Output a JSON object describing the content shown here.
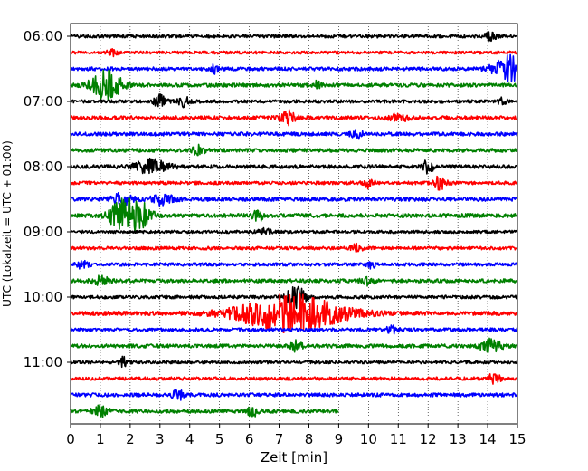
{
  "chart_data": {
    "type": "line",
    "title": "",
    "xlabel": "Zeit  [min]",
    "ylabel": "UTC (Lokalzeit = UTC + 01:00)",
    "xlim": [
      0,
      15
    ],
    "x_ticks": [
      "0",
      "1",
      "2",
      "3",
      "4",
      "5",
      "6",
      "7",
      "8",
      "9",
      "10",
      "11",
      "12",
      "13",
      "14",
      "15"
    ],
    "y_ticks": [
      "06:00",
      "07:00",
      "08:00",
      "09:00",
      "10:00",
      "11:00"
    ],
    "grid": "vertical dotted lines at each minute",
    "line_minutes": 15,
    "colors": [
      "#000000",
      "#ff0000",
      "#0000ff",
      "#008000"
    ],
    "traces": [
      {
        "start": "06:00",
        "color": "#000000",
        "amplitude": 0.18,
        "end_minute": 15,
        "events": [
          {
            "minute": 14.1,
            "amplitude": 0.55,
            "duration": 0.25
          }
        ]
      },
      {
        "start": "06:15",
        "color": "#ff0000",
        "amplitude": 0.16,
        "end_minute": 15,
        "events": [
          {
            "minute": 1.4,
            "amplitude": 0.35,
            "duration": 0.25
          }
        ]
      },
      {
        "start": "06:30",
        "color": "#0000ff",
        "amplitude": 0.2,
        "end_minute": 15,
        "events": [
          {
            "minute": 14.7,
            "amplitude": 1.4,
            "duration": 0.7
          },
          {
            "minute": 4.8,
            "amplitude": 0.45,
            "duration": 0.2
          }
        ]
      },
      {
        "start": "06:45",
        "color": "#008000",
        "amplitude": 0.2,
        "end_minute": 15,
        "events": [
          {
            "minute": 1.2,
            "amplitude": 1.6,
            "duration": 0.7
          },
          {
            "minute": 8.3,
            "amplitude": 0.45,
            "duration": 0.2
          }
        ]
      },
      {
        "start": "07:00",
        "color": "#000000",
        "amplitude": 0.18,
        "end_minute": 15,
        "events": [
          {
            "minute": 3.0,
            "amplitude": 0.65,
            "duration": 0.3
          },
          {
            "minute": 3.8,
            "amplitude": 0.6,
            "duration": 0.3
          },
          {
            "minute": 14.5,
            "amplitude": 0.45,
            "duration": 0.2
          }
        ]
      },
      {
        "start": "07:15",
        "color": "#ff0000",
        "amplitude": 0.2,
        "end_minute": 15,
        "events": [
          {
            "minute": 7.3,
            "amplitude": 0.8,
            "duration": 0.35
          },
          {
            "minute": 11.0,
            "amplitude": 0.35,
            "duration": 0.5
          }
        ]
      },
      {
        "start": "07:30",
        "color": "#0000ff",
        "amplitude": 0.2,
        "end_minute": 15,
        "events": [
          {
            "minute": 9.6,
            "amplitude": 0.5,
            "duration": 0.25
          }
        ]
      },
      {
        "start": "07:45",
        "color": "#008000",
        "amplitude": 0.2,
        "end_minute": 15,
        "events": [
          {
            "minute": 4.3,
            "amplitude": 0.5,
            "duration": 0.3
          }
        ]
      },
      {
        "start": "08:00",
        "color": "#000000",
        "amplitude": 0.2,
        "end_minute": 15,
        "events": [
          {
            "minute": 2.7,
            "amplitude": 0.75,
            "duration": 0.8
          },
          {
            "minute": 12.0,
            "amplitude": 0.7,
            "duration": 0.25
          }
        ]
      },
      {
        "start": "08:15",
        "color": "#ff0000",
        "amplitude": 0.18,
        "end_minute": 15,
        "events": [
          {
            "minute": 12.4,
            "amplitude": 0.7,
            "duration": 0.3
          },
          {
            "minute": 10.0,
            "amplitude": 0.5,
            "duration": 0.25
          }
        ]
      },
      {
        "start": "08:30",
        "color": "#0000ff",
        "amplitude": 0.22,
        "end_minute": 15,
        "events": [
          {
            "minute": 1.7,
            "amplitude": 0.55,
            "duration": 0.5
          },
          {
            "minute": 3.1,
            "amplitude": 0.55,
            "duration": 0.5
          }
        ]
      },
      {
        "start": "08:45",
        "color": "#008000",
        "amplitude": 0.22,
        "end_minute": 15,
        "events": [
          {
            "minute": 1.7,
            "amplitude": 1.6,
            "duration": 0.55
          },
          {
            "minute": 2.3,
            "amplitude": 1.6,
            "duration": 0.55
          },
          {
            "minute": 6.3,
            "amplitude": 0.5,
            "duration": 0.3
          }
        ]
      },
      {
        "start": "09:00",
        "color": "#000000",
        "amplitude": 0.16,
        "end_minute": 15,
        "events": [
          {
            "minute": 6.5,
            "amplitude": 0.4,
            "duration": 0.3
          }
        ]
      },
      {
        "start": "09:15",
        "color": "#ff0000",
        "amplitude": 0.18,
        "end_minute": 15,
        "events": [
          {
            "minute": 9.6,
            "amplitude": 0.4,
            "duration": 0.25
          }
        ]
      },
      {
        "start": "09:30",
        "color": "#0000ff",
        "amplitude": 0.18,
        "end_minute": 15,
        "events": [
          {
            "minute": 0.4,
            "amplitude": 0.45,
            "duration": 0.3
          },
          {
            "minute": 10.1,
            "amplitude": 0.45,
            "duration": 0.2
          }
        ]
      },
      {
        "start": "09:45",
        "color": "#008000",
        "amplitude": 0.2,
        "end_minute": 15,
        "events": [
          {
            "minute": 1.0,
            "amplitude": 0.45,
            "duration": 0.4
          },
          {
            "minute": 10.0,
            "amplitude": 0.45,
            "duration": 0.3
          }
        ]
      },
      {
        "start": "10:00",
        "color": "#000000",
        "amplitude": 0.18,
        "end_minute": 15,
        "events": [
          {
            "minute": 7.55,
            "amplitude": 1.3,
            "duration": 0.45
          }
        ]
      },
      {
        "start": "10:15",
        "color": "#ff0000",
        "amplitude": 0.22,
        "end_minute": 15,
        "events": [
          {
            "minute": 7.4,
            "amplitude": 2.0,
            "duration": 2.4
          }
        ]
      },
      {
        "start": "10:30",
        "color": "#0000ff",
        "amplitude": 0.18,
        "end_minute": 15,
        "events": [
          {
            "minute": 10.8,
            "amplitude": 0.4,
            "duration": 0.3
          }
        ]
      },
      {
        "start": "10:45",
        "color": "#008000",
        "amplitude": 0.2,
        "end_minute": 15,
        "events": [
          {
            "minute": 14.1,
            "amplitude": 0.7,
            "duration": 0.5
          },
          {
            "minute": 7.55,
            "amplitude": 0.5,
            "duration": 0.3
          }
        ]
      },
      {
        "start": "11:00",
        "color": "#000000",
        "amplitude": 0.16,
        "end_minute": 15,
        "events": [
          {
            "minute": 1.8,
            "amplitude": 0.6,
            "duration": 0.2
          }
        ]
      },
      {
        "start": "11:15",
        "color": "#ff0000",
        "amplitude": 0.18,
        "end_minute": 15,
        "events": [
          {
            "minute": 14.2,
            "amplitude": 0.6,
            "duration": 0.3
          }
        ]
      },
      {
        "start": "11:30",
        "color": "#0000ff",
        "amplitude": 0.2,
        "end_minute": 15,
        "events": [
          {
            "minute": 3.6,
            "amplitude": 0.5,
            "duration": 0.3
          }
        ]
      },
      {
        "start": "11:45",
        "color": "#008000",
        "amplitude": 0.2,
        "end_minute": 9,
        "events": [
          {
            "minute": 1.0,
            "amplitude": 0.6,
            "duration": 0.35
          },
          {
            "minute": 6.1,
            "amplitude": 0.5,
            "duration": 0.3
          }
        ]
      }
    ]
  }
}
